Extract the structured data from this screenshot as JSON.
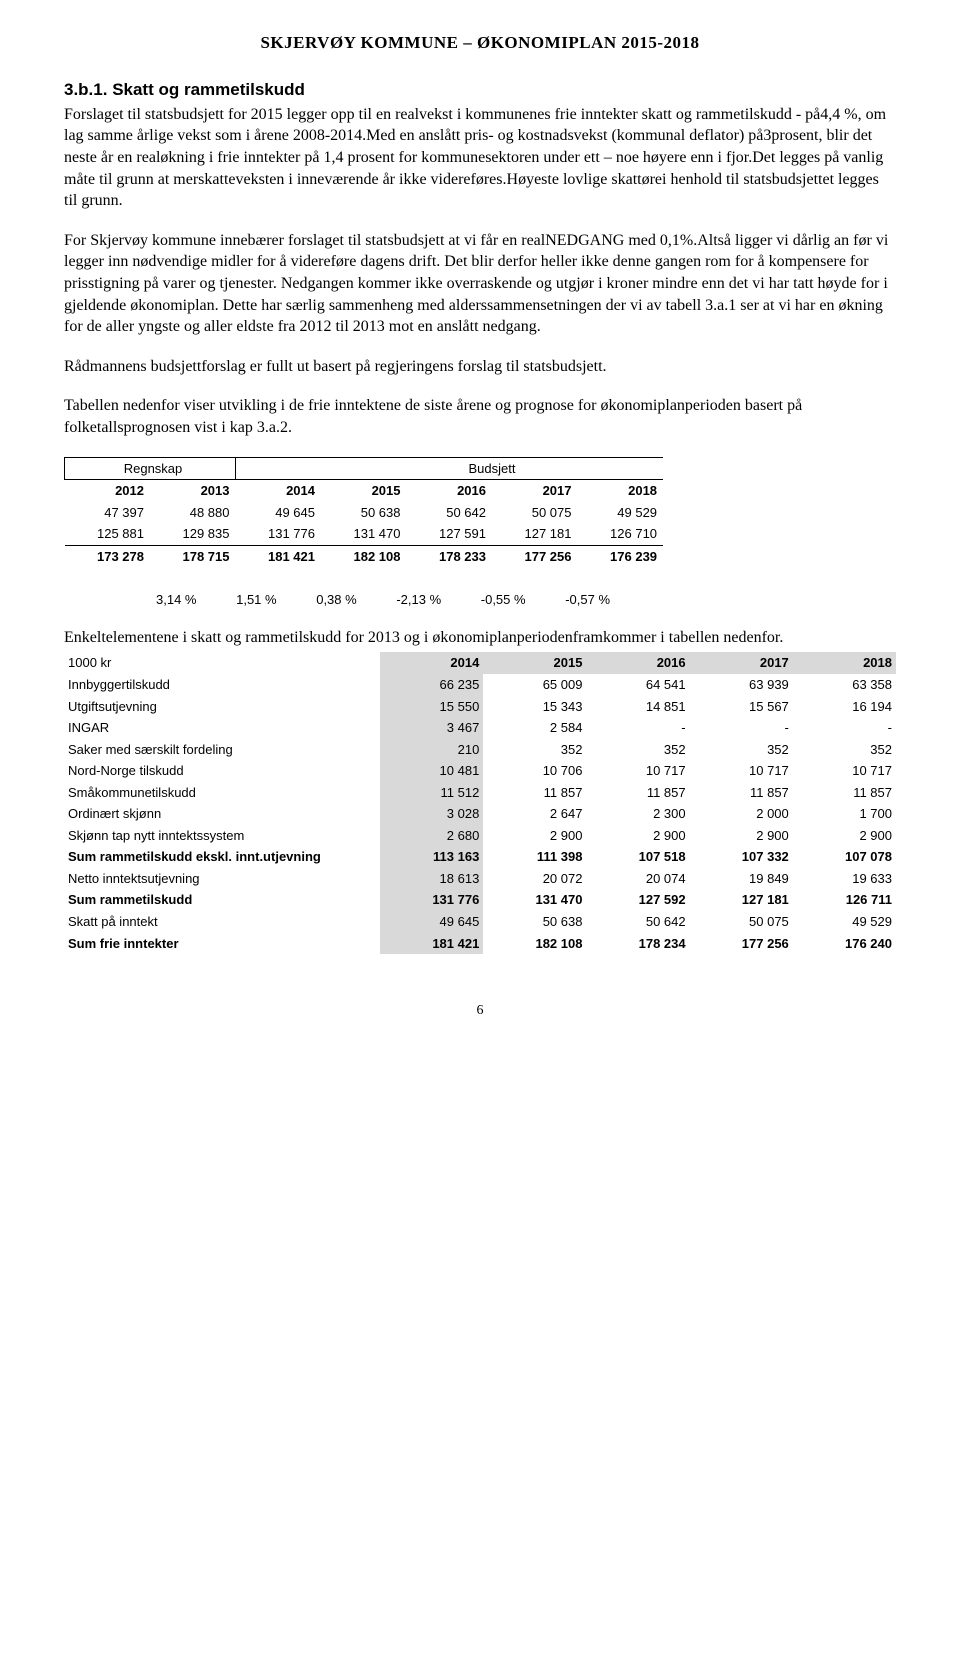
{
  "header": "SKJERVØY KOMMUNE – ØKONOMIPLAN  2015-2018",
  "section_heading_no": "3.b.1. Skatt og rammetilskudd",
  "section_heading_prefix": "3.b.1. ",
  "section_heading_title": "Skatt og rammetilskudd",
  "para1": "Forslaget til statsbudsjett for 2015 legger opp til en realvekst i kommunenes frie inntekter skatt og rammetilskudd -  på4,4 %, om lag samme årlige vekst som i årene 2008-2014.Med en anslått pris- og kostnadsvekst (kommunal deflator) på3prosent, blir det neste år en realøkning i frie inntekter på 1,4 prosent for kommunesektoren under ett – noe høyere enn i fjor.Det legges på vanlig måte til grunn at merskatteveksten i inneværende år ikke videreføres.Høyeste lovlige skattørei henhold til statsbudsjettet legges til grunn.",
  "para2": "For Skjervøy kommune innebærer forslaget til statsbudsjett at vi får en realNEDGANG med 0,1%.Altså ligger vi dårlig an før vi legger inn nødvendige midler for å videreføre dagens drift. Det blir derfor heller ikke denne gangen rom for å kompensere for prisstigning på varer og tjenester. Nedgangen kommer ikke overraskende og utgjør i kroner mindre enn det vi har tatt høyde for i gjeldende økonomiplan. Dette har særlig sammenheng med alderssammensetningen der vi av tabell 3.a.1 ser at vi har en økning for de aller yngste og aller eldste fra 2012 til 2013 mot en anslått nedgang.",
  "para3": "Rådmannens budsjettforslag er fullt ut basert på regjeringens forslag til statsbudsjett.",
  "para4": "Tabellen nedenfor viser utvikling i de frie inntektene de siste årene og prognose for økonomiplanperioden basert på folketallsprognosen vist i kap 3.a.2.",
  "table1": {
    "regnskap_label": "Regnskap",
    "budsjett_label": "Budsjett",
    "years": [
      "2012",
      "2013",
      "2014",
      "2015",
      "2016",
      "2017",
      "2018"
    ],
    "row1": [
      "47 397",
      "48 880",
      "49 645",
      "50 638",
      "50 642",
      "50 075",
      "49 529"
    ],
    "row2": [
      "125 881",
      "129 835",
      "131 776",
      "131 470",
      "127 591",
      "127 181",
      "126 710"
    ],
    "row3": [
      "173 278",
      "178 715",
      "181 421",
      "182 108",
      "178 233",
      "177 256",
      "176 239"
    ],
    "pct": [
      "3,14 %",
      "1,51 %",
      "0,38 %",
      "-2,13 %",
      "-0,55 %",
      "-0,57 %"
    ]
  },
  "para5": "Enkeltelementene i skatt og rammetilskudd for 2013 og i økonomiplanperiodenframkommer i tabellen nedenfor.",
  "table2": {
    "header_left": "1000 kr",
    "years": [
      "2014",
      "2015",
      "2016",
      "2017",
      "2018"
    ],
    "rows": [
      {
        "label": "Innbyggertilskudd",
        "vals": [
          "66 235",
          "65 009",
          "64 541",
          "63 939",
          "63 358"
        ],
        "bold": false
      },
      {
        "label": "Utgiftsutjevning",
        "vals": [
          "15 550",
          "15 343",
          "14 851",
          "15 567",
          "16 194"
        ],
        "bold": false
      },
      {
        "label": "INGAR",
        "vals": [
          "3 467",
          "2 584",
          "-",
          "-",
          "-"
        ],
        "bold": false
      },
      {
        "label": "Saker med særskilt fordeling",
        "vals": [
          "210",
          "352",
          "352",
          "352",
          "352"
        ],
        "bold": false
      },
      {
        "label": "Nord-Norge tilskudd",
        "vals": [
          "10 481",
          "10 706",
          "10 717",
          "10 717",
          "10 717"
        ],
        "bold": false
      },
      {
        "label": "Småkommunetilskudd",
        "vals": [
          "11 512",
          "11 857",
          "11 857",
          "11 857",
          "11 857"
        ],
        "bold": false
      },
      {
        "label": "Ordinært skjønn",
        "vals": [
          "3 028",
          "2 647",
          "2 300",
          "2 000",
          "1 700"
        ],
        "bold": false
      },
      {
        "label": "Skjønn tap nytt inntektssystem",
        "vals": [
          "2 680",
          "2 900",
          "2 900",
          "2 900",
          "2 900"
        ],
        "bold": false
      },
      {
        "label": "Sum rammetilskudd ekskl. innt.utjevning",
        "vals": [
          "113 163",
          "111 398",
          "107 518",
          "107 332",
          "107 078"
        ],
        "bold": true
      },
      {
        "label": "Netto inntektsutjevning",
        "vals": [
          "18 613",
          "20 072",
          "20 074",
          "19 849",
          "19 633"
        ],
        "bold": false
      },
      {
        "label": "Sum rammetilskudd",
        "vals": [
          "131 776",
          "131 470",
          "127 592",
          "127 181",
          "126 711"
        ],
        "bold": true
      },
      {
        "label": "Skatt på inntekt",
        "vals": [
          "49 645",
          "50 638",
          "50 642",
          "50 075",
          "49 529"
        ],
        "bold": false
      },
      {
        "label": "Sum frie inntekter",
        "vals": [
          "181 421",
          "182 108",
          "178 234",
          "177 256",
          "176 240"
        ],
        "bold": true
      }
    ]
  },
  "page_number": "6",
  "colors": {
    "text": "#000000",
    "bg": "#ffffff",
    "shade": "#d9d9d9"
  }
}
